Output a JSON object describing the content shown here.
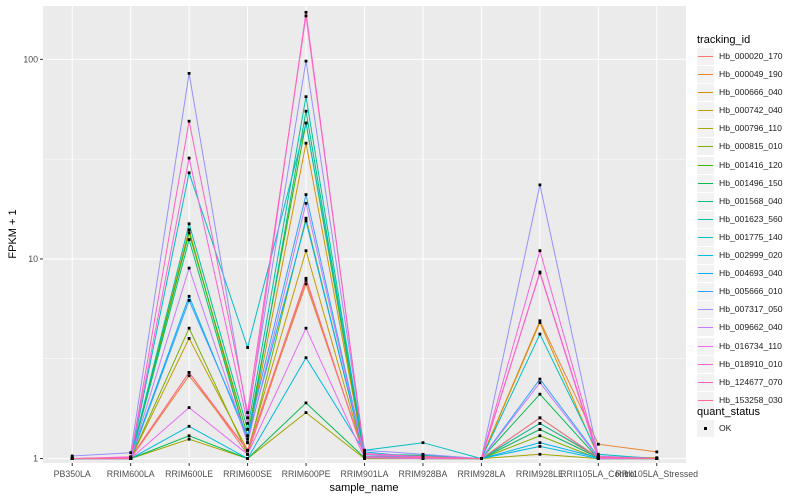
{
  "chart_data": {
    "type": "line",
    "xlabel": "sample_name",
    "ylabel": "FPKM + 1",
    "y_scale": "log10",
    "ylim": [
      0.95,
      185
    ],
    "y_ticks": [
      1,
      10,
      100
    ],
    "y_tick_labels": [
      "1",
      "10",
      "100"
    ],
    "categories": [
      "PB350LA",
      "RRIM600LA",
      "RRIM600LE",
      "RRIM600SE",
      "RRIM600PE",
      "RRIM901LA",
      "RRIM928BA",
      "RRIM928LA",
      "RRIM928LE",
      "RRII105LA_Control",
      "RRII105LA_Stressed"
    ],
    "grid": true,
    "legend_position": "right",
    "legend_title": "tracking_id",
    "series": [
      {
        "name": "Hb_000020_170",
        "color": "#F8766D",
        "values": [
          1.0,
          1.01,
          2.7,
          1.05,
          7.8,
          1.02,
          1.02,
          1.0,
          1.5,
          1.01,
          1.0
        ]
      },
      {
        "name": "Hb_000049_190",
        "color": "#EA8331",
        "values": [
          1.0,
          1.0,
          2.6,
          1.1,
          7.5,
          1.05,
          1.03,
          1.0,
          4.9,
          1.18,
          1.08
        ]
      },
      {
        "name": "Hb_000666_040",
        "color": "#D89000",
        "values": [
          1.0,
          1.01,
          14.0,
          1.2,
          38.0,
          1.02,
          1.01,
          1.0,
          4.8,
          1.02,
          1.01
        ]
      },
      {
        "name": "Hb_000742_040",
        "color": "#C09B00",
        "values": [
          1.0,
          1.0,
          4.0,
          1.1,
          11.0,
          1.02,
          1.01,
          1.0,
          1.4,
          1.01,
          1.0
        ]
      },
      {
        "name": "Hb_000796_110",
        "color": "#A3A500",
        "values": [
          1.0,
          1.0,
          1.25,
          1.0,
          1.7,
          1.0,
          1.0,
          1.0,
          1.05,
          1.0,
          1.0
        ]
      },
      {
        "name": "Hb_000815_010",
        "color": "#7CAE00",
        "values": [
          1.0,
          1.0,
          4.5,
          1.05,
          16.0,
          1.01,
          1.0,
          1.0,
          1.3,
          1.0,
          1.0
        ]
      },
      {
        "name": "Hb_001416_120",
        "color": "#39B600",
        "values": [
          1.0,
          1.01,
          13.5,
          1.3,
          48.0,
          1.02,
          1.01,
          1.0,
          1.6,
          1.01,
          1.0
        ]
      },
      {
        "name": "Hb_001496_150",
        "color": "#00BB4E",
        "values": [
          1.0,
          1.0,
          1.3,
          1.0,
          1.9,
          1.01,
          1.0,
          1.0,
          2.1,
          1.0,
          1.0
        ]
      },
      {
        "name": "Hb_001568_040",
        "color": "#00BF7D",
        "values": [
          1.0,
          1.0,
          12.5,
          1.2,
          55.0,
          1.03,
          1.02,
          1.0,
          1.4,
          1.01,
          1.0
        ]
      },
      {
        "name": "Hb_001623_560",
        "color": "#00C1A3",
        "values": [
          1.0,
          1.01,
          15.0,
          1.4,
          65.0,
          1.05,
          1.04,
          1.0,
          1.5,
          1.02,
          1.0
        ]
      },
      {
        "name": "Hb_001775_140",
        "color": "#00BFC4",
        "values": [
          1.0,
          1.0,
          27.0,
          3.6,
          48.0,
          1.1,
          1.2,
          1.0,
          4.2,
          1.05,
          1.0
        ]
      },
      {
        "name": "Hb_002999_020",
        "color": "#00BAE0",
        "values": [
          1.0,
          1.0,
          1.45,
          1.0,
          3.2,
          1.08,
          1.01,
          1.0,
          1.15,
          1.0,
          1.0
        ]
      },
      {
        "name": "Hb_004693_040",
        "color": "#00B0F6",
        "values": [
          1.0,
          1.01,
          6.5,
          1.25,
          15.5,
          1.02,
          1.01,
          1.0,
          1.2,
          1.01,
          1.0
        ]
      },
      {
        "name": "Hb_005666_010",
        "color": "#35A2FF",
        "values": [
          1.0,
          1.0,
          6.2,
          1.3,
          21.0,
          1.03,
          1.02,
          1.0,
          2.5,
          1.02,
          1.0
        ]
      },
      {
        "name": "Hb_007317_050",
        "color": "#9590FF",
        "values": [
          1.03,
          1.07,
          85.0,
          1.6,
          98.0,
          1.1,
          1.05,
          1.0,
          23.5,
          1.03,
          1.0
        ]
      },
      {
        "name": "Hb_009662_040",
        "color": "#C77CFF",
        "values": [
          1.0,
          1.0,
          9.0,
          1.2,
          19.0,
          1.02,
          1.01,
          1.0,
          2.4,
          1.01,
          1.0
        ]
      },
      {
        "name": "Hb_016734_110",
        "color": "#E76BF3",
        "values": [
          1.0,
          1.0,
          1.8,
          1.05,
          4.5,
          1.01,
          1.0,
          1.0,
          8.5,
          1.0,
          1.0
        ]
      },
      {
        "name": "Hb_018910_010",
        "color": "#FA62DB",
        "values": [
          1.0,
          1.02,
          32.0,
          1.5,
          172.0,
          1.05,
          1.02,
          1.0,
          11.0,
          1.02,
          1.0
        ]
      },
      {
        "name": "Hb_124677_070",
        "color": "#FF62BC",
        "values": [
          1.0,
          1.01,
          49.0,
          1.7,
          165.0,
          1.06,
          1.02,
          1.0,
          8.6,
          1.02,
          1.0
        ]
      },
      {
        "name": "Hb_153258_030",
        "color": "#FF6C91",
        "values": [
          1.0,
          1.0,
          2.7,
          1.1,
          8.0,
          1.02,
          1.01,
          1.0,
          1.6,
          1.01,
          1.0
        ]
      }
    ],
    "quant_status_legend": {
      "title": "quant_status",
      "entries": [
        "OK"
      ]
    }
  }
}
